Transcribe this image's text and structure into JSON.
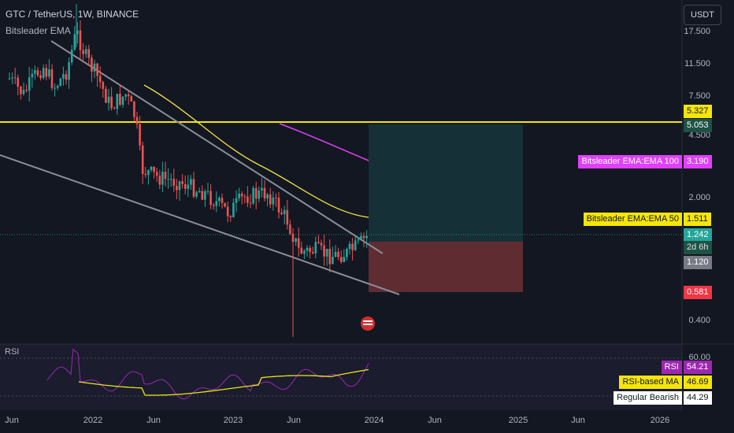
{
  "header": {
    "title": "GTC / TetherUS, 1W, BINANCE",
    "indicator": "Bitsleader EMA",
    "currency_button": "USDT"
  },
  "colors": {
    "background": "#131722",
    "bull": "#26a69a",
    "bear": "#ef5350",
    "ema50": "#f0e442",
    "ema100": "#e040fb",
    "resistance": "#f5e50a",
    "trendline": "#8a8d96",
    "rsi": "#9c27b0",
    "rsi_ma": "#e6e619",
    "profit_zone": "rgba(38,166,154,0.18)",
    "loss_zone": "rgba(239,83,80,0.35)"
  },
  "price_axis": {
    "ticks": [
      "17.500",
      "11.500",
      "7.500",
      "4.500",
      "2.000",
      "0.400"
    ],
    "scale": "log"
  },
  "price_tags": [
    {
      "label": "5.327",
      "style": "yellow"
    },
    {
      "label": "5.053",
      "style": "darkgreen"
    },
    {
      "label": "3.190",
      "style": "magenta",
      "caption": "Bitsleader EMA:EMA 100"
    },
    {
      "label": "1.511",
      "style": "yellow",
      "caption": "Bitsleader EMA:EMA 50"
    },
    {
      "label": "1.242",
      "style": "teal",
      "sub": "2d 6h"
    },
    {
      "label": "1.120",
      "style": "grey"
    },
    {
      "label": "0.581",
      "style": "red"
    }
  ],
  "rsi": {
    "label": "RSI",
    "top_tick": "60.00",
    "tags": [
      {
        "caption": "RSI",
        "value": "54.21",
        "style": "purple"
      },
      {
        "caption": "RSI-based MA",
        "value": "46.69",
        "style": "yellow"
      },
      {
        "caption": "Regular Bearish",
        "value": "44.29",
        "style": "white"
      }
    ]
  },
  "time_axis": {
    "labels": [
      "Jun",
      "2022",
      "Jun",
      "2023",
      "Jun",
      "2024",
      "Jun",
      "2025",
      "Jun",
      "2026"
    ]
  }
}
